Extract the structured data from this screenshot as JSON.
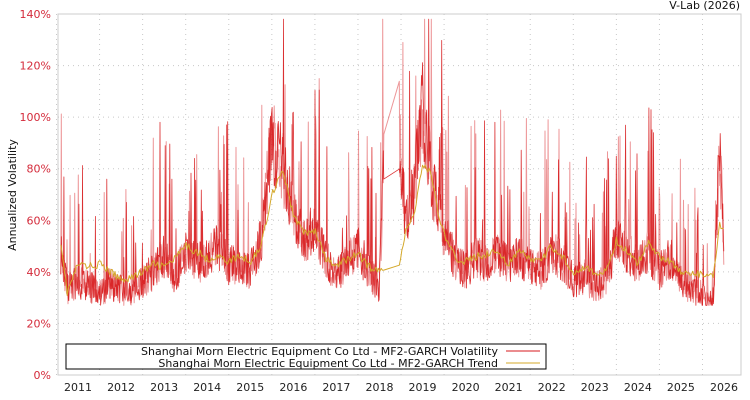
{
  "chart_data": {
    "type": "line",
    "title": "",
    "credit": "V-Lab (2026)",
    "xlabel": "",
    "ylabel": "Annualized Volatility",
    "ylim": [
      0,
      140
    ],
    "yticks": [
      "0%",
      "20%",
      "40%",
      "60%",
      "80%",
      "100%",
      "120%",
      "140%"
    ],
    "xticks": [
      "2011",
      "2012",
      "2013",
      "2014",
      "2015",
      "2016",
      "2017",
      "2018",
      "2019",
      "2020",
      "2021",
      "2022",
      "2023",
      "2024",
      "2025",
      "2026"
    ],
    "grid": true,
    "legend_position": "bottom-left inside",
    "colors": {
      "volatility": "#d7191c",
      "trend": "#d4a82a",
      "ytick": "#d42a3a"
    },
    "x": [
      2010.6,
      2010.75,
      2011.0,
      2011.25,
      2011.5,
      2011.75,
      2012.0,
      2012.25,
      2012.5,
      2012.75,
      2013.0,
      2013.25,
      2013.5,
      2013.75,
      2014.0,
      2014.25,
      2014.5,
      2014.75,
      2015.0,
      2015.25,
      2015.5,
      2015.75,
      2016.0,
      2016.25,
      2016.5,
      2016.75,
      2017.0,
      2017.25,
      2017.5,
      2017.75,
      2018.0,
      2018.1,
      2018.45,
      2018.6,
      2018.8,
      2019.0,
      2019.2,
      2019.4,
      2019.6,
      2019.8,
      2020.0,
      2020.25,
      2020.5,
      2020.75,
      2021.0,
      2021.25,
      2021.5,
      2021.75,
      2022.0,
      2022.25,
      2022.5,
      2022.75,
      2023.0,
      2023.25,
      2023.5,
      2023.75,
      2024.0,
      2024.25,
      2024.5,
      2024.75,
      2025.0,
      2025.25,
      2025.5,
      2025.75,
      2025.9,
      2026.0
    ],
    "series": [
      {
        "name": "Shanghai Morn Electric Equipment Co Ltd - MF2-GARCH Volatility",
        "values": [
          50,
          35,
          38,
          36,
          34,
          37,
          35,
          33,
          38,
          42,
          48,
          40,
          50,
          45,
          48,
          52,
          44,
          46,
          42,
          55,
          95,
          85,
          65,
          55,
          60,
          48,
          40,
          45,
          52,
          42,
          36,
          84,
          105,
          60,
          75,
          110,
          80,
          65,
          52,
          46,
          42,
          48,
          45,
          50,
          44,
          48,
          45,
          42,
          50,
          46,
          38,
          40,
          36,
          38,
          55,
          50,
          45,
          50,
          42,
          48,
          38,
          35,
          32,
          30,
          90,
          50
        ]
      },
      {
        "name": "Shanghai Morn Electric Equipment Co Ltd - MF2-GARCH Trend",
        "values": [
          52,
          32,
          43,
          42,
          43,
          40,
          37,
          38,
          40,
          43,
          42,
          45,
          50,
          48,
          45,
          46,
          44,
          46,
          44,
          50,
          70,
          80,
          62,
          55,
          56,
          45,
          42,
          45,
          47,
          42,
          40,
          42,
          43,
          55,
          62,
          82,
          78,
          60,
          50,
          45,
          44,
          46,
          47,
          48,
          43,
          48,
          45,
          44,
          50,
          46,
          40,
          42,
          39,
          40,
          52,
          48,
          43,
          52,
          46,
          44,
          40,
          39,
          39,
          38,
          58,
          56
        ]
      }
    ]
  },
  "legend": {
    "items": [
      {
        "label": "Shanghai Morn Electric Equipment Co Ltd - MF2-GARCH Volatility",
        "color": "#d7191c"
      },
      {
        "label": "Shanghai Morn Electric Equipment Co Ltd - MF2-GARCH Trend",
        "color": "#d4a82a"
      }
    ]
  }
}
